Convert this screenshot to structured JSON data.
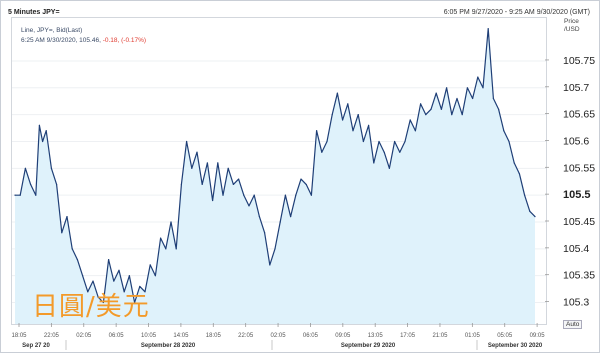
{
  "header": {
    "title": "5 Minutes JPY=",
    "range": "6:05 PM 9/27/2020 - 9:25 AM 9/30/2020 (GMT)"
  },
  "legend": {
    "line1": "Line, JPY=, Bid(Last)",
    "line2_prefix": "6:25 AM 9/30/2020, 105.46, ",
    "line2_change": "-0.18, (-0.17%)"
  },
  "axis": {
    "price_label_1": "Price",
    "price_label_2": "/USD"
  },
  "auto_label": "Auto",
  "watermark": "日圓/美元",
  "colors": {
    "line": "#1f3f77",
    "fill": "#dff2fb",
    "negative": "#e03a2f"
  },
  "chart_data": {
    "type": "area",
    "ylim": [
      105.26,
      105.83
    ],
    "yticks": [
      105.3,
      105.35,
      105.4,
      105.45,
      105.5,
      105.55,
      105.6,
      105.65,
      105.7,
      105.75
    ],
    "ytick_labels": [
      "105.3",
      "105.35",
      "105.4",
      "105.45",
      "105.5",
      "105.55",
      "105.6",
      "105.65",
      "105.7",
      "105.75"
    ],
    "highlight_tick": "105.5",
    "xticks": [
      "18:05",
      "22:05",
      "02:05",
      "06:05",
      "10:05",
      "14:05",
      "18:05",
      "22:05",
      "02:05",
      "06:05",
      "09:05",
      "13:05",
      "17:05",
      "21:05",
      "01:05",
      "05:05",
      "09:05"
    ],
    "date_labels": [
      "Sep 27 20",
      "September 28 2020",
      "September 29 2020",
      "September 30 2020"
    ],
    "x_index_max": 100,
    "series": [
      {
        "x": [
          0,
          1,
          2,
          3,
          4,
          4.7,
          5.3,
          6,
          7,
          8,
          9,
          10,
          11,
          12,
          13,
          14,
          15,
          16,
          17,
          18,
          19,
          20,
          21,
          22,
          23,
          24,
          25,
          26,
          27,
          28,
          29,
          30,
          31,
          32,
          33,
          34,
          35,
          36,
          37,
          38,
          39,
          40,
          41,
          42,
          43,
          44,
          45,
          46,
          47,
          48,
          49,
          50,
          51,
          52,
          53,
          54,
          55,
          56,
          57,
          58,
          59,
          60,
          61,
          62,
          63,
          64,
          65,
          66,
          67,
          68,
          69,
          70,
          71,
          72,
          73,
          74,
          75,
          76,
          77,
          78,
          79,
          80,
          81,
          82,
          83,
          84,
          85,
          86,
          87,
          88,
          89,
          90,
          91,
          92,
          93,
          94,
          95,
          96,
          97,
          98,
          99,
          100
        ],
        "values": [
          105.5,
          105.5,
          105.55,
          105.52,
          105.5,
          105.63,
          105.6,
          105.62,
          105.55,
          105.52,
          105.43,
          105.46,
          105.4,
          105.38,
          105.35,
          105.32,
          105.34,
          105.31,
          105.3,
          105.38,
          105.34,
          105.36,
          105.32,
          105.35,
          105.3,
          105.33,
          105.32,
          105.37,
          105.35,
          105.42,
          105.4,
          105.45,
          105.4,
          105.52,
          105.6,
          105.55,
          105.58,
          105.52,
          105.56,
          105.49,
          105.56,
          105.5,
          105.55,
          105.52,
          105.53,
          105.5,
          105.48,
          105.5,
          105.46,
          105.43,
          105.37,
          105.4,
          105.45,
          105.5,
          105.46,
          105.5,
          105.53,
          105.52,
          105.5,
          105.62,
          105.58,
          105.6,
          105.65,
          105.69,
          105.64,
          105.67,
          105.62,
          105.65,
          105.6,
          105.63,
          105.56,
          105.6,
          105.58,
          105.55,
          105.6,
          105.58,
          105.6,
          105.64,
          105.62,
          105.67,
          105.65,
          105.66,
          105.69,
          105.66,
          105.7,
          105.65,
          105.68,
          105.65,
          105.7,
          105.68,
          105.72,
          105.7,
          105.81,
          105.68,
          105.66,
          105.62,
          105.6,
          105.56,
          105.54,
          105.5,
          105.47,
          105.46
        ]
      }
    ]
  }
}
